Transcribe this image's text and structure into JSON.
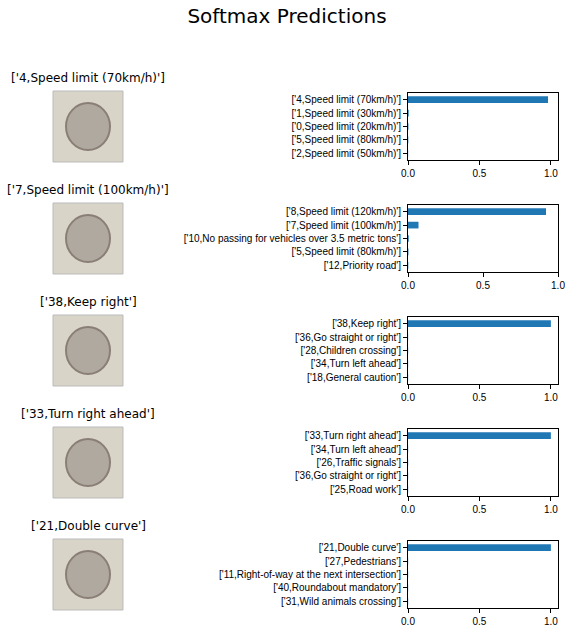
{
  "title": "Softmax Predictions",
  "chart_data": [
    {
      "type": "bar",
      "orientation": "horizontal",
      "title": "['4,Speed limit (70km/h)']",
      "categories": [
        "['4,Speed limit (70km/h)']",
        "['1,Speed limit (30km/h)']",
        "['0,Speed limit (20km/h)']",
        "['5,Speed limit (80km/h)']",
        "['2,Speed limit (50km/h)']"
      ],
      "values": [
        0.98,
        0.005,
        0.003,
        0.002,
        0.001
      ],
      "color": "#1f77b4",
      "xlim": [
        0,
        1.05
      ],
      "xticks": [
        {
          "value": 0,
          "label": "0.0"
        },
        {
          "value": 0.5,
          "label": "0.5"
        },
        {
          "value": 1,
          "label": "1.0"
        }
      ],
      "grid": false
    },
    {
      "type": "bar",
      "orientation": "horizontal",
      "title": "['7,Speed limit (100km/h)']",
      "categories": [
        "['8,Speed limit (120km/h)']",
        "['7,Speed limit (100km/h)']",
        "['10,No passing for vehicles over 3.5 metric tons']",
        "['5,Speed limit (80km/h)']",
        "['12,Priority road']"
      ],
      "values": [
        0.92,
        0.07,
        0.005,
        0.003,
        0.002
      ],
      "color": "#1f77b4",
      "xlim": [
        0,
        1.0
      ],
      "xticks": [
        {
          "value": 0,
          "label": "0.0"
        },
        {
          "value": 0.5,
          "label": "0.5"
        },
        {
          "value": 1,
          "label": "1.0"
        }
      ],
      "grid": false
    },
    {
      "type": "bar",
      "orientation": "horizontal",
      "title": "['38,Keep right']",
      "categories": [
        "['38,Keep right']",
        "['36,Go straight or right']",
        "['28,Children crossing']",
        "['34,Turn left ahead']",
        "['18,General caution']"
      ],
      "values": [
        1.0,
        0.001,
        0.001,
        0.001,
        0.001
      ],
      "color": "#1f77b4",
      "xlim": [
        0,
        1.05
      ],
      "xticks": [
        {
          "value": 0,
          "label": "0.0"
        },
        {
          "value": 0.5,
          "label": "0.5"
        },
        {
          "value": 1,
          "label": "1.0"
        }
      ],
      "grid": false
    },
    {
      "type": "bar",
      "orientation": "horizontal",
      "title": "['33,Turn right ahead']",
      "categories": [
        "['33,Turn right ahead']",
        "['34,Turn left ahead']",
        "['26,Traffic signals']",
        "['36,Go straight or right']",
        "['25,Road work']"
      ],
      "values": [
        1.0,
        0.001,
        0.001,
        0.001,
        0.001
      ],
      "color": "#1f77b4",
      "xlim": [
        0,
        1.05
      ],
      "xticks": [
        {
          "value": 0,
          "label": "0.0"
        },
        {
          "value": 0.5,
          "label": "0.5"
        },
        {
          "value": 1,
          "label": "1.0"
        }
      ],
      "grid": false
    },
    {
      "type": "bar",
      "orientation": "horizontal",
      "title": "['21,Double curve']",
      "categories": [
        "['21,Double curve']",
        "['27,Pedestrians']",
        "['11,Right-of-way at the next intersection']",
        "['40,Roundabout mandatory']",
        "['31,Wild animals crossing']"
      ],
      "values": [
        1.0,
        0.001,
        0.001,
        0.001,
        0.001
      ],
      "color": "#1f77b4",
      "xlim": [
        0,
        1.05
      ],
      "xticks": [
        {
          "value": 0,
          "label": "0.0"
        },
        {
          "value": 0.5,
          "label": "0.5"
        },
        {
          "value": 1,
          "label": "1.0"
        }
      ],
      "grid": false
    }
  ]
}
